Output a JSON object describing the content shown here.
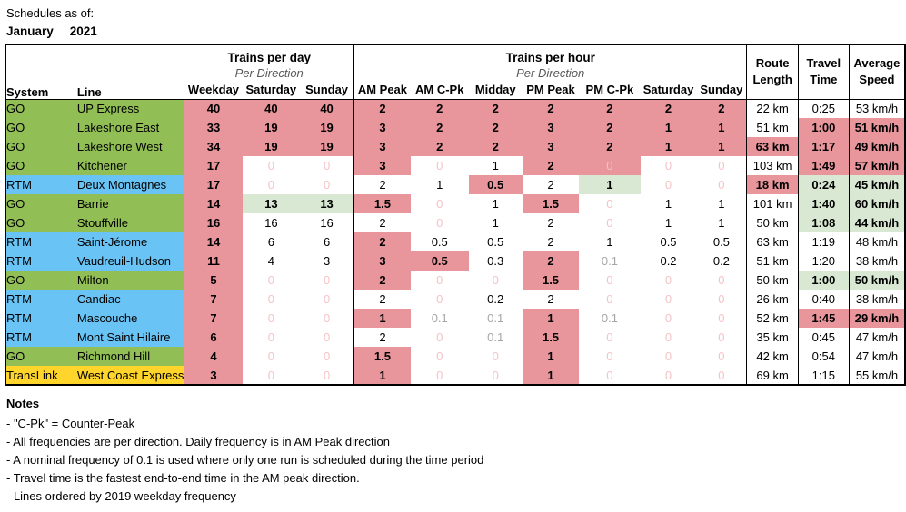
{
  "title": {
    "label": "Schedules as of:",
    "month": "January",
    "year": "2021"
  },
  "colors": {
    "go_green": "#92BF55",
    "rtm_blue": "#69C3F4",
    "translink_yellow": "#FFD42B",
    "highlight_pink": "#E8959B",
    "highlight_green": "#D9E8D2",
    "faded_zero_text": "#F4C3C7",
    "gray_text": "#A6A6A6",
    "muted_text": "#595959"
  },
  "table": {
    "groups": {
      "per_day": "Trains per day",
      "per_hour": "Trains per hour",
      "per_direction": "Per Direction"
    },
    "col_headers": {
      "system": "System",
      "line": "Line",
      "day": [
        "Weekday",
        "Saturday",
        "Sunday"
      ],
      "hour": [
        "AM Peak",
        "AM C-Pk",
        "Midday",
        "PM Peak",
        "PM C-Pk",
        "Saturday",
        "Sunday"
      ],
      "stats": [
        {
          "l1": "Route",
          "l2": "Length"
        },
        {
          "l1": "Travel",
          "l2": "Time"
        },
        {
          "l1": "Average",
          "l2": "Speed"
        }
      ]
    },
    "rows": [
      {
        "system": "GO",
        "line": "UP Express",
        "system_class": "go",
        "cells": [
          [
            "40",
            "pink"
          ],
          [
            "40",
            "pink"
          ],
          [
            "40",
            "pink"
          ],
          [
            "2",
            "pink"
          ],
          [
            "2",
            "pink"
          ],
          [
            "2",
            "pink"
          ],
          [
            "2",
            "pink"
          ],
          [
            "2",
            "pink"
          ],
          [
            "2",
            "pink"
          ],
          [
            "2",
            "pink"
          ],
          [
            "22 km"
          ],
          [
            "0:25"
          ],
          [
            "53 km/h"
          ]
        ]
      },
      {
        "system": "GO",
        "line": "Lakeshore East",
        "system_class": "go",
        "cells": [
          [
            "33",
            "pink"
          ],
          [
            "19",
            "pink"
          ],
          [
            "19",
            "pink"
          ],
          [
            "3",
            "pink"
          ],
          [
            "2",
            "pink"
          ],
          [
            "2",
            "pink"
          ],
          [
            "3",
            "pink"
          ],
          [
            "2",
            "pink"
          ],
          [
            "1",
            "pink"
          ],
          [
            "1",
            "pink"
          ],
          [
            "51 km"
          ],
          [
            "1:00",
            "pink"
          ],
          [
            "51 km/h",
            "pink"
          ]
        ]
      },
      {
        "system": "GO",
        "line": "Lakeshore West",
        "system_class": "go",
        "cells": [
          [
            "34",
            "pink"
          ],
          [
            "19",
            "pink"
          ],
          [
            "19",
            "pink"
          ],
          [
            "3",
            "pink"
          ],
          [
            "2",
            "pink"
          ],
          [
            "2",
            "pink"
          ],
          [
            "3",
            "pink"
          ],
          [
            "2",
            "pink"
          ],
          [
            "1",
            "pink"
          ],
          [
            "1",
            "pink"
          ],
          [
            "63 km",
            "pink"
          ],
          [
            "1:17",
            "pink"
          ],
          [
            "49 km/h",
            "pink"
          ]
        ]
      },
      {
        "system": "GO",
        "line": "Kitchener",
        "system_class": "go",
        "cells": [
          [
            "17",
            "pink"
          ],
          [
            "0",
            "",
            "faded"
          ],
          [
            "0",
            "",
            "faded"
          ],
          [
            "3",
            "pink"
          ],
          [
            "0",
            "",
            "faded"
          ],
          [
            "1"
          ],
          [
            "2",
            "pink"
          ],
          [
            "0",
            "pink",
            "faded"
          ],
          [
            "0",
            "",
            "faded"
          ],
          [
            "0",
            "",
            "faded"
          ],
          [
            "103 km"
          ],
          [
            "1:49",
            "pink"
          ],
          [
            "57 km/h",
            "pink"
          ]
        ]
      },
      {
        "system": "RTM",
        "line": "Deux Montagnes",
        "system_class": "rtm",
        "cells": [
          [
            "17",
            "pink"
          ],
          [
            "0",
            "",
            "faded"
          ],
          [
            "0",
            "",
            "faded"
          ],
          [
            "2"
          ],
          [
            "1"
          ],
          [
            "0.5",
            "pink"
          ],
          [
            "2"
          ],
          [
            "1",
            "green"
          ],
          [
            "0",
            "",
            "faded"
          ],
          [
            "0",
            "",
            "faded"
          ],
          [
            "18 km",
            "pink"
          ],
          [
            "0:24",
            "green"
          ],
          [
            "45 km/h",
            "green"
          ]
        ]
      },
      {
        "system": "GO",
        "line": "Barrie",
        "system_class": "go",
        "cells": [
          [
            "14",
            "pink"
          ],
          [
            "13",
            "green"
          ],
          [
            "13",
            "green"
          ],
          [
            "1.5",
            "pink"
          ],
          [
            "0",
            "",
            "faded"
          ],
          [
            "1"
          ],
          [
            "1.5",
            "pink"
          ],
          [
            "0",
            "",
            "faded"
          ],
          [
            "1"
          ],
          [
            "1"
          ],
          [
            "101 km"
          ],
          [
            "1:40",
            "green"
          ],
          [
            "60 km/h",
            "green"
          ]
        ]
      },
      {
        "system": "GO",
        "line": "Stouffville",
        "system_class": "go",
        "cells": [
          [
            "16",
            "pink"
          ],
          [
            "16"
          ],
          [
            "16"
          ],
          [
            "2"
          ],
          [
            "0",
            "",
            "faded"
          ],
          [
            "1"
          ],
          [
            "2"
          ],
          [
            "0",
            "",
            "faded"
          ],
          [
            "1"
          ],
          [
            "1"
          ],
          [
            "50 km"
          ],
          [
            "1:08",
            "green"
          ],
          [
            "44 km/h",
            "green"
          ]
        ]
      },
      {
        "system": "RTM",
        "line": "Saint-Jérome",
        "system_class": "rtm",
        "cells": [
          [
            "14",
            "pink"
          ],
          [
            "6"
          ],
          [
            "6"
          ],
          [
            "2",
            "pink"
          ],
          [
            "0.5"
          ],
          [
            "0.5"
          ],
          [
            "2"
          ],
          [
            "1"
          ],
          [
            "0.5"
          ],
          [
            "0.5"
          ],
          [
            "63 km"
          ],
          [
            "1:19"
          ],
          [
            "48 km/h"
          ]
        ]
      },
      {
        "system": "RTM",
        "line": "Vaudreuil-Hudson",
        "system_class": "rtm",
        "cells": [
          [
            "11",
            "pink"
          ],
          [
            "4"
          ],
          [
            "3"
          ],
          [
            "3",
            "pink"
          ],
          [
            "0.5",
            "pink"
          ],
          [
            "0.3"
          ],
          [
            "2",
            "pink"
          ],
          [
            "0.1",
            "",
            "gray"
          ],
          [
            "0.2"
          ],
          [
            "0.2"
          ],
          [
            "51 km"
          ],
          [
            "1:20"
          ],
          [
            "38 km/h"
          ]
        ]
      },
      {
        "system": "GO",
        "line": "Milton",
        "system_class": "go",
        "cells": [
          [
            "5",
            "pink"
          ],
          [
            "0",
            "",
            "faded"
          ],
          [
            "0",
            "",
            "faded"
          ],
          [
            "2",
            "pink"
          ],
          [
            "0",
            "",
            "faded"
          ],
          [
            "0",
            "",
            "faded"
          ],
          [
            "1.5",
            "pink"
          ],
          [
            "0",
            "",
            "faded"
          ],
          [
            "0",
            "",
            "faded"
          ],
          [
            "0",
            "",
            "faded"
          ],
          [
            "50 km"
          ],
          [
            "1:00",
            "green"
          ],
          [
            "50 km/h",
            "green"
          ]
        ]
      },
      {
        "system": "RTM",
        "line": "Candiac",
        "system_class": "rtm",
        "cells": [
          [
            "7",
            "pink"
          ],
          [
            "0",
            "",
            "faded"
          ],
          [
            "0",
            "",
            "faded"
          ],
          [
            "2"
          ],
          [
            "0",
            "",
            "faded"
          ],
          [
            "0.2"
          ],
          [
            "2"
          ],
          [
            "0",
            "",
            "faded"
          ],
          [
            "0",
            "",
            "faded"
          ],
          [
            "0",
            "",
            "faded"
          ],
          [
            "26 km"
          ],
          [
            "0:40"
          ],
          [
            "38 km/h"
          ]
        ]
      },
      {
        "system": "RTM",
        "line": "Mascouche",
        "system_class": "rtm",
        "cells": [
          [
            "7",
            "pink"
          ],
          [
            "0",
            "",
            "faded"
          ],
          [
            "0",
            "",
            "faded"
          ],
          [
            "1",
            "pink"
          ],
          [
            "0.1",
            "",
            "gray"
          ],
          [
            "0.1",
            "",
            "gray"
          ],
          [
            "1",
            "pink"
          ],
          [
            "0.1",
            "",
            "gray"
          ],
          [
            "0",
            "",
            "faded"
          ],
          [
            "0",
            "",
            "faded"
          ],
          [
            "52 km"
          ],
          [
            "1:45",
            "pink"
          ],
          [
            "29 km/h",
            "pink"
          ]
        ]
      },
      {
        "system": "RTM",
        "line": "Mont Saint Hilaire",
        "system_class": "rtm",
        "cells": [
          [
            "6",
            "pink"
          ],
          [
            "0",
            "",
            "faded"
          ],
          [
            "0",
            "",
            "faded"
          ],
          [
            "2"
          ],
          [
            "0",
            "",
            "faded"
          ],
          [
            "0.1",
            "",
            "gray"
          ],
          [
            "1.5",
            "pink"
          ],
          [
            "0",
            "",
            "faded"
          ],
          [
            "0",
            "",
            "faded"
          ],
          [
            "0",
            "",
            "faded"
          ],
          [
            "35 km"
          ],
          [
            "0:45"
          ],
          [
            "47 km/h"
          ]
        ]
      },
      {
        "system": "GO",
        "line": "Richmond Hill",
        "system_class": "go",
        "cells": [
          [
            "4",
            "pink"
          ],
          [
            "0",
            "",
            "faded"
          ],
          [
            "0",
            "",
            "faded"
          ],
          [
            "1.5",
            "pink"
          ],
          [
            "0",
            "",
            "faded"
          ],
          [
            "0",
            "",
            "faded"
          ],
          [
            "1",
            "pink"
          ],
          [
            "0",
            "",
            "faded"
          ],
          [
            "0",
            "",
            "faded"
          ],
          [
            "0",
            "",
            "faded"
          ],
          [
            "42 km"
          ],
          [
            "0:54"
          ],
          [
            "47 km/h"
          ]
        ]
      },
      {
        "system": "TransLink",
        "line": "West Coast Express",
        "system_class": "translink",
        "cells": [
          [
            "3",
            "pink"
          ],
          [
            "0",
            "",
            "faded"
          ],
          [
            "0",
            "",
            "faded"
          ],
          [
            "1",
            "pink"
          ],
          [
            "0",
            "",
            "faded"
          ],
          [
            "0",
            "",
            "faded"
          ],
          [
            "1",
            "pink"
          ],
          [
            "0",
            "",
            "faded"
          ],
          [
            "0",
            "",
            "faded"
          ],
          [
            "0",
            "",
            "faded"
          ],
          [
            "69 km"
          ],
          [
            "1:15"
          ],
          [
            "55 km/h"
          ]
        ]
      }
    ]
  },
  "notes": {
    "heading": "Notes",
    "items": [
      "- \"C-Pk\" = Counter-Peak",
      "- All frequencies are per direction.  Daily frequency is in AM Peak direction",
      "- A nominal frequency of 0.1 is used where only one run is scheduled during the time period",
      "- Travel time is the fastest end-to-end time in the AM peak direction.",
      "- Lines ordered by 2019 weekday frequency"
    ]
  },
  "chart_data": {
    "type": "table",
    "title": "Schedules as of: January 2021",
    "columns": [
      "System",
      "Line",
      "Trains/day Weekday",
      "Trains/day Saturday",
      "Trains/day Sunday",
      "Trains/hr AM Peak",
      "Trains/hr AM C-Pk",
      "Trains/hr Midday",
      "Trains/hr PM Peak",
      "Trains/hr PM C-Pk",
      "Trains/hr Saturday",
      "Trains/hr Sunday",
      "Route Length",
      "Travel Time",
      "Average Speed"
    ],
    "rows": [
      [
        "GO",
        "UP Express",
        40,
        40,
        40,
        2,
        2,
        2,
        2,
        2,
        2,
        2,
        "22 km",
        "0:25",
        "53 km/h"
      ],
      [
        "GO",
        "Lakeshore East",
        33,
        19,
        19,
        3,
        2,
        2,
        3,
        2,
        1,
        1,
        "51 km",
        "1:00",
        "51 km/h"
      ],
      [
        "GO",
        "Lakeshore West",
        34,
        19,
        19,
        3,
        2,
        2,
        3,
        2,
        1,
        1,
        "63 km",
        "1:17",
        "49 km/h"
      ],
      [
        "GO",
        "Kitchener",
        17,
        0,
        0,
        3,
        0,
        1,
        2,
        0,
        0,
        0,
        "103 km",
        "1:49",
        "57 km/h"
      ],
      [
        "RTM",
        "Deux Montagnes",
        17,
        0,
        0,
        2,
        1,
        0.5,
        2,
        1,
        0,
        0,
        "18 km",
        "0:24",
        "45 km/h"
      ],
      [
        "GO",
        "Barrie",
        14,
        13,
        13,
        1.5,
        0,
        1,
        1.5,
        0,
        1,
        1,
        "101 km",
        "1:40",
        "60 km/h"
      ],
      [
        "GO",
        "Stouffville",
        16,
        16,
        16,
        2,
        0,
        1,
        2,
        0,
        1,
        1,
        "50 km",
        "1:08",
        "44 km/h"
      ],
      [
        "RTM",
        "Saint-Jérome",
        14,
        6,
        6,
        2,
        0.5,
        0.5,
        2,
        1,
        0.5,
        0.5,
        "63 km",
        "1:19",
        "48 km/h"
      ],
      [
        "RTM",
        "Vaudreuil-Hudson",
        11,
        4,
        3,
        3,
        0.5,
        0.3,
        2,
        0.1,
        0.2,
        0.2,
        "51 km",
        "1:20",
        "38 km/h"
      ],
      [
        "GO",
        "Milton",
        5,
        0,
        0,
        2,
        0,
        0,
        1.5,
        0,
        0,
        0,
        "50 km",
        "1:00",
        "50 km/h"
      ],
      [
        "RTM",
        "Candiac",
        7,
        0,
        0,
        2,
        0,
        0.2,
        2,
        0,
        0,
        0,
        "26 km",
        "0:40",
        "38 km/h"
      ],
      [
        "RTM",
        "Mascouche",
        7,
        0,
        0,
        1,
        0.1,
        0.1,
        1,
        0.1,
        0,
        0,
        "52 km",
        "1:45",
        "29 km/h"
      ],
      [
        "RTM",
        "Mont Saint Hilaire",
        6,
        0,
        0,
        2,
        0,
        0.1,
        1.5,
        0,
        0,
        0,
        "35 km",
        "0:45",
        "47 km/h"
      ],
      [
        "GO",
        "Richmond Hill",
        4,
        0,
        0,
        1.5,
        0,
        0,
        1,
        0,
        0,
        0,
        "42 km",
        "0:54",
        "47 km/h"
      ],
      [
        "TransLink",
        "West Coast Express",
        3,
        0,
        0,
        1,
        0,
        0,
        1,
        0,
        0,
        0,
        "69 km",
        "1:15",
        "55 km/h"
      ]
    ]
  }
}
